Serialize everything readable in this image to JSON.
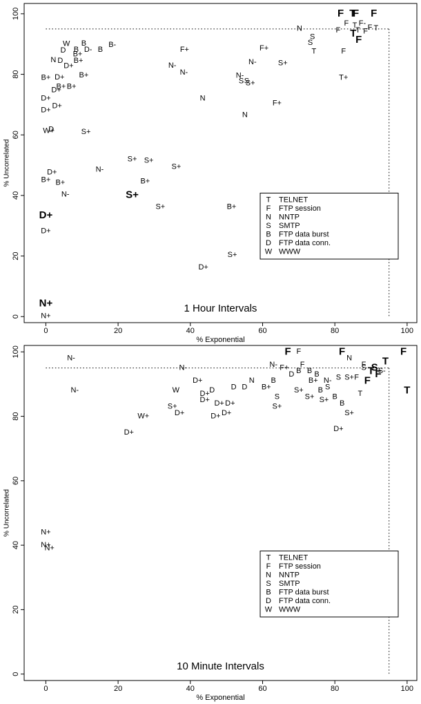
{
  "chart_data": [
    {
      "type": "scatter",
      "annotation": "1 Hour Intervals",
      "xlabel": "% Exponential",
      "ylabel": "% Uncorrelated",
      "xlim": [
        -6,
        102.7
      ],
      "ylim": [
        -2,
        103.4
      ],
      "xticks": [
        0,
        20,
        40,
        60,
        80,
        100
      ],
      "yticks": [
        0,
        20,
        40,
        60,
        80,
        100
      ],
      "hline": 95,
      "vline": 95,
      "legend_position": "lower right",
      "legend": [
        {
          "symbol": "T",
          "name": "TELNET"
        },
        {
          "symbol": "F",
          "name": "FTP session"
        },
        {
          "symbol": "N",
          "name": "NNTP"
        },
        {
          "symbol": "S",
          "name": "SMTP"
        },
        {
          "symbol": "B",
          "name": "FTP data burst"
        },
        {
          "symbol": "D",
          "name": "FTP data conn."
        },
        {
          "symbol": "W",
          "name": "WWW"
        }
      ],
      "points": [
        {
          "label": "F",
          "x": 81.6,
          "y": 100,
          "bold": true
        },
        {
          "label": "T",
          "x": 84.9,
          "y": 100,
          "bold": true
        },
        {
          "label": "F",
          "x": 85.8,
          "y": 100,
          "bold": true
        },
        {
          "label": "F",
          "x": 90.8,
          "y": 100,
          "bold": true
        },
        {
          "label": "N",
          "x": 70.2,
          "y": 95
        },
        {
          "label": "F",
          "x": 83.2,
          "y": 96.8
        },
        {
          "label": "F",
          "x": 80.9,
          "y": 94.5
        },
        {
          "label": "F-",
          "x": 87.6,
          "y": 96.8
        },
        {
          "label": "T",
          "x": 85.5,
          "y": 96.1
        },
        {
          "label": "F",
          "x": 89.7,
          "y": 95.4
        },
        {
          "label": "T",
          "x": 91.4,
          "y": 95.2
        },
        {
          "label": "T",
          "x": 86.4,
          "y": 94.5
        },
        {
          "label": "F",
          "x": 88.5,
          "y": 94.1
        },
        {
          "label": "T",
          "x": 85.1,
          "y": 93.4,
          "bold": true
        },
        {
          "label": "F",
          "x": 86.6,
          "y": 91.3,
          "bold": true
        },
        {
          "label": "S",
          "x": 73.8,
          "y": 92.3
        },
        {
          "label": "S",
          "x": 73.2,
          "y": 90.4
        },
        {
          "label": "T",
          "x": 74.2,
          "y": 87.5
        },
        {
          "label": "F",
          "x": 82.4,
          "y": 87.5
        },
        {
          "label": "W",
          "x": 5.7,
          "y": 90
        },
        {
          "label": "B",
          "x": 10.5,
          "y": 90.2
        },
        {
          "label": "D",
          "x": 4.8,
          "y": 87.9
        },
        {
          "label": "B",
          "x": 8.4,
          "y": 88.1
        },
        {
          "label": "D-",
          "x": 11.7,
          "y": 88.1
        },
        {
          "label": "B",
          "x": 15.1,
          "y": 88.1
        },
        {
          "label": "B-",
          "x": 18.4,
          "y": 89.7
        },
        {
          "label": "B+",
          "x": 8.8,
          "y": 86.6
        },
        {
          "label": "N",
          "x": 2.1,
          "y": 84.7
        },
        {
          "label": "D",
          "x": 4,
          "y": 84.5
        },
        {
          "label": "B+",
          "x": 9,
          "y": 84.5
        },
        {
          "label": "D+",
          "x": 6.3,
          "y": 82.7
        },
        {
          "label": "F+",
          "x": 38.4,
          "y": 88.1
        },
        {
          "label": "N-",
          "x": 57.2,
          "y": 84
        },
        {
          "label": "F+",
          "x": 60.4,
          "y": 88.6
        },
        {
          "label": "S+",
          "x": 65.6,
          "y": 83.6
        },
        {
          "label": "N-",
          "x": 35,
          "y": 82.9
        },
        {
          "label": "N-",
          "x": 38.2,
          "y": 80.6
        },
        {
          "label": "B+",
          "x": 0,
          "y": 78.8
        },
        {
          "label": "D+",
          "x": 3.8,
          "y": 79
        },
        {
          "label": "B+",
          "x": 10.5,
          "y": 79.7
        },
        {
          "label": "N-",
          "x": 53.7,
          "y": 79.5
        },
        {
          "label": "S",
          "x": 54.1,
          "y": 77.7
        },
        {
          "label": "S",
          "x": 55.6,
          "y": 77.7
        },
        {
          "label": "S+",
          "x": 56.6,
          "y": 77
        },
        {
          "label": "T+",
          "x": 82.4,
          "y": 78.8
        },
        {
          "label": "B+",
          "x": 4.2,
          "y": 75.9
        },
        {
          "label": "B+",
          "x": 7.1,
          "y": 75.9
        },
        {
          "label": "D+",
          "x": 2.9,
          "y": 74.7
        },
        {
          "label": "D+",
          "x": 0,
          "y": 72
        },
        {
          "label": "N",
          "x": 43.4,
          "y": 72
        },
        {
          "label": "F+",
          "x": 64,
          "y": 70.4
        },
        {
          "label": "D+",
          "x": 3.1,
          "y": 69.5
        },
        {
          "label": "D+",
          "x": 0,
          "y": 68.1
        },
        {
          "label": "N",
          "x": 55.1,
          "y": 66.5
        },
        {
          "label": "D",
          "x": 1.5,
          "y": 61.7
        },
        {
          "label": "W+",
          "x": 0.8,
          "y": 61.3
        },
        {
          "label": "S+",
          "x": 11.1,
          "y": 61
        },
        {
          "label": "S+",
          "x": 23.9,
          "y": 51.9
        },
        {
          "label": "S+",
          "x": 28.5,
          "y": 51.5
        },
        {
          "label": "S+",
          "x": 36.1,
          "y": 49.4
        },
        {
          "label": "N-",
          "x": 14.9,
          "y": 48.5
        },
        {
          "label": "D+",
          "x": 1.7,
          "y": 47.6
        },
        {
          "label": "B+",
          "x": 0,
          "y": 45.1
        },
        {
          "label": "B+",
          "x": 4,
          "y": 44.2
        },
        {
          "label": "B+",
          "x": 27.5,
          "y": 44.6
        },
        {
          "label": "N-",
          "x": 5.4,
          "y": 40.3
        },
        {
          "label": "S+",
          "x": 23.9,
          "y": 40.1,
          "bold": true
        },
        {
          "label": "S+",
          "x": 31.7,
          "y": 36.2
        },
        {
          "label": "B+",
          "x": 51.4,
          "y": 36.2
        },
        {
          "label": "D+",
          "x": 0,
          "y": 33.3,
          "bold": true
        },
        {
          "label": "D+",
          "x": 0,
          "y": 28.2
        },
        {
          "label": "S+",
          "x": 51.6,
          "y": 20.3
        },
        {
          "label": "D+",
          "x": 43.6,
          "y": 16.2
        },
        {
          "label": "N+",
          "x": 0,
          "y": 4.3,
          "bold": true
        },
        {
          "label": "N+",
          "x": 0,
          "y": 0.2
        }
      ]
    },
    {
      "type": "scatter",
      "annotation": "10 Minute Intervals",
      "xlabel": "% Exponential",
      "ylabel": "% Uncorrelated",
      "xlim": [
        -6,
        102.7
      ],
      "ylim": [
        -2,
        102
      ],
      "xticks": [
        0,
        20,
        40,
        60,
        80,
        100
      ],
      "yticks": [
        0,
        20,
        40,
        60,
        80,
        100
      ],
      "hline": 95,
      "vline": 95,
      "legend_position": "lower right",
      "legend": [
        {
          "symbol": "T",
          "name": "TELNET"
        },
        {
          "symbol": "F",
          "name": "FTP session"
        },
        {
          "symbol": "N",
          "name": "NNTP"
        },
        {
          "symbol": "S",
          "name": "SMTP"
        },
        {
          "symbol": "B",
          "name": "FTP data burst"
        },
        {
          "symbol": "D",
          "name": "FTP data conn."
        },
        {
          "symbol": "W",
          "name": "WWW"
        }
      ],
      "points": [
        {
          "label": "F",
          "x": 67,
          "y": 100,
          "bold": true
        },
        {
          "label": "F",
          "x": 70,
          "y": 100
        },
        {
          "label": "F",
          "x": 82,
          "y": 100,
          "bold": true
        },
        {
          "label": "F",
          "x": 99,
          "y": 100,
          "bold": true
        },
        {
          "label": "N",
          "x": 84,
          "y": 98
        },
        {
          "label": "T",
          "x": 94,
          "y": 97,
          "bold": true
        },
        {
          "label": "F",
          "x": 88,
          "y": 96
        },
        {
          "label": "F",
          "x": 71,
          "y": 96
        },
        {
          "label": "S",
          "x": 88,
          "y": 95
        },
        {
          "label": "S",
          "x": 91,
          "y": 95,
          "bold": true
        },
        {
          "label": "T",
          "x": 90,
          "y": 94,
          "bold": true
        },
        {
          "label": "F",
          "x": 92,
          "y": 93,
          "bold": true
        },
        {
          "label": "S-",
          "x": 93,
          "y": 94
        },
        {
          "label": "F",
          "x": 89,
          "y": 91,
          "bold": true
        },
        {
          "label": "F",
          "x": 86,
          "y": 92
        },
        {
          "label": "N-",
          "x": 7,
          "y": 98
        },
        {
          "label": "N-",
          "x": 38,
          "y": 95
        },
        {
          "label": "N-",
          "x": 8,
          "y": 88
        },
        {
          "label": "W",
          "x": 36,
          "y": 88
        },
        {
          "label": "D+",
          "x": 42,
          "y": 91
        },
        {
          "label": "D",
          "x": 46,
          "y": 88
        },
        {
          "label": "D+",
          "x": 44,
          "y": 87
        },
        {
          "label": "D",
          "x": 52,
          "y": 89
        },
        {
          "label": "D",
          "x": 55,
          "y": 89
        },
        {
          "label": "N",
          "x": 57,
          "y": 91
        },
        {
          "label": "N-",
          "x": 63,
          "y": 96
        },
        {
          "label": "F+",
          "x": 66,
          "y": 95
        },
        {
          "label": "B",
          "x": 70,
          "y": 94
        },
        {
          "label": "D",
          "x": 68,
          "y": 93
        },
        {
          "label": "B",
          "x": 73,
          "y": 94
        },
        {
          "label": "B",
          "x": 75,
          "y": 93
        },
        {
          "label": "B+",
          "x": 74,
          "y": 91
        },
        {
          "label": "N-",
          "x": 78,
          "y": 91
        },
        {
          "label": "S",
          "x": 81,
          "y": 92
        },
        {
          "label": "S+",
          "x": 84,
          "y": 92
        },
        {
          "label": "B",
          "x": 63,
          "y": 91
        },
        {
          "label": "B+",
          "x": 61,
          "y": 89
        },
        {
          "label": "S",
          "x": 78,
          "y": 89
        },
        {
          "label": "D+",
          "x": 44,
          "y": 85
        },
        {
          "label": "D+",
          "x": 48,
          "y": 84
        },
        {
          "label": "D+",
          "x": 51,
          "y": 84
        },
        {
          "label": "D+",
          "x": 50,
          "y": 81
        },
        {
          "label": "D+",
          "x": 47,
          "y": 80
        },
        {
          "label": "S+",
          "x": 35,
          "y": 83
        },
        {
          "label": "D+",
          "x": 37,
          "y": 81
        },
        {
          "label": "W+",
          "x": 27,
          "y": 80
        },
        {
          "label": "D+",
          "x": 23,
          "y": 75
        },
        {
          "label": "S",
          "x": 64,
          "y": 86
        },
        {
          "label": "S+",
          "x": 64,
          "y": 83
        },
        {
          "label": "S+",
          "x": 70,
          "y": 88
        },
        {
          "label": "S+",
          "x": 73,
          "y": 86
        },
        {
          "label": "S+",
          "x": 77,
          "y": 85
        },
        {
          "label": "B",
          "x": 76,
          "y": 88
        },
        {
          "label": "B",
          "x": 80,
          "y": 86
        },
        {
          "label": "D+",
          "x": 81,
          "y": 76
        },
        {
          "label": "S+",
          "x": 84,
          "y": 81
        },
        {
          "label": "B",
          "x": 82,
          "y": 84
        },
        {
          "label": "T",
          "x": 87,
          "y": 87
        },
        {
          "label": "T",
          "x": 100,
          "y": 88,
          "bold": true
        },
        {
          "label": "N+",
          "x": 0,
          "y": 44
        },
        {
          "label": "N+",
          "x": 0,
          "y": 40
        },
        {
          "label": "N+",
          "x": 1,
          "y": 39
        }
      ]
    }
  ]
}
